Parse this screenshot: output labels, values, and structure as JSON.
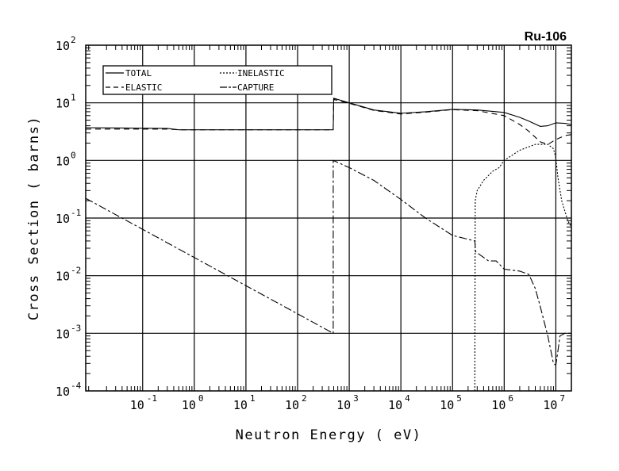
{
  "chart_data": {
    "type": "line",
    "title": "Ru-106",
    "xlabel": "Neutron Energy ( eV)",
    "ylabel": "Cross Section ( barns)",
    "xscale": "log",
    "yscale": "log",
    "xlim": [
      0.0079,
      20000000
    ],
    "ylim": [
      0.0001,
      100
    ],
    "x_tick_exponents": [
      -1,
      0,
      1,
      2,
      3,
      4,
      5,
      6,
      7
    ],
    "y_tick_exponents": [
      -4,
      -3,
      -2,
      -1,
      0,
      1,
      2
    ],
    "grid": true,
    "legend_position": "top-left",
    "series": [
      {
        "name": "TOTAL",
        "style": "solid",
        "x": [
          0.0079,
          0.3,
          0.5,
          490,
          500,
          1000,
          3000,
          10000,
          30000,
          100000,
          300000,
          1000000,
          2000000,
          3000000,
          5000000,
          7000000,
          10000000,
          15000000,
          20000000
        ],
        "y": [
          3.7,
          3.6,
          3.4,
          3.4,
          12,
          10,
          7.5,
          6.6,
          7.0,
          7.7,
          7.5,
          6.8,
          5.6,
          4.8,
          3.9,
          4.0,
          4.5,
          4.4,
          4.2
        ]
      },
      {
        "name": "ELASTIC",
        "style": "dashed",
        "x": [
          0.0079,
          0.3,
          0.5,
          490,
          500,
          1000,
          3000,
          10000,
          30000,
          100000,
          300000,
          1000000,
          2000000,
          3000000,
          5000000,
          7000000,
          10000000,
          15000000,
          20000000
        ],
        "y": [
          3.5,
          3.5,
          3.4,
          3.4,
          11.5,
          9.8,
          7.4,
          6.4,
          6.9,
          7.6,
          7.3,
          6.0,
          4.2,
          3.2,
          2.1,
          1.9,
          2.3,
          2.7,
          2.8
        ]
      },
      {
        "name": "INELASTIC",
        "style": "dotted",
        "x": [
          270000,
          275000,
          300000,
          400000,
          600000,
          800000,
          1000000,
          2000000,
          4000000,
          7000000,
          9000000,
          10000000,
          11000000,
          13000000,
          17000000,
          20000000
        ],
        "y": [
          0.0001,
          0.2,
          0.3,
          0.45,
          0.65,
          0.75,
          1.0,
          1.5,
          1.9,
          1.9,
          1.6,
          1.1,
          0.5,
          0.2,
          0.09,
          0.07
        ]
      },
      {
        "name": "CAPTURE",
        "style": "dashdot",
        "x": [
          0.0079,
          490,
          490,
          1000,
          3000,
          10000,
          30000,
          100000,
          270000,
          280000,
          500000,
          700000,
          1000000,
          2000000,
          3000000,
          4000000,
          5000000,
          7000000,
          9000000,
          10000000,
          11000000,
          12000000,
          15000000,
          20000000
        ],
        "y": [
          0.22,
          0.001,
          1.0,
          0.75,
          0.45,
          0.21,
          0.1,
          0.05,
          0.04,
          0.026,
          0.018,
          0.018,
          0.013,
          0.012,
          0.0105,
          0.006,
          0.0029,
          0.0009,
          0.0003,
          0.00028,
          0.0005,
          0.0009,
          0.001,
          0.001
        ]
      }
    ]
  }
}
